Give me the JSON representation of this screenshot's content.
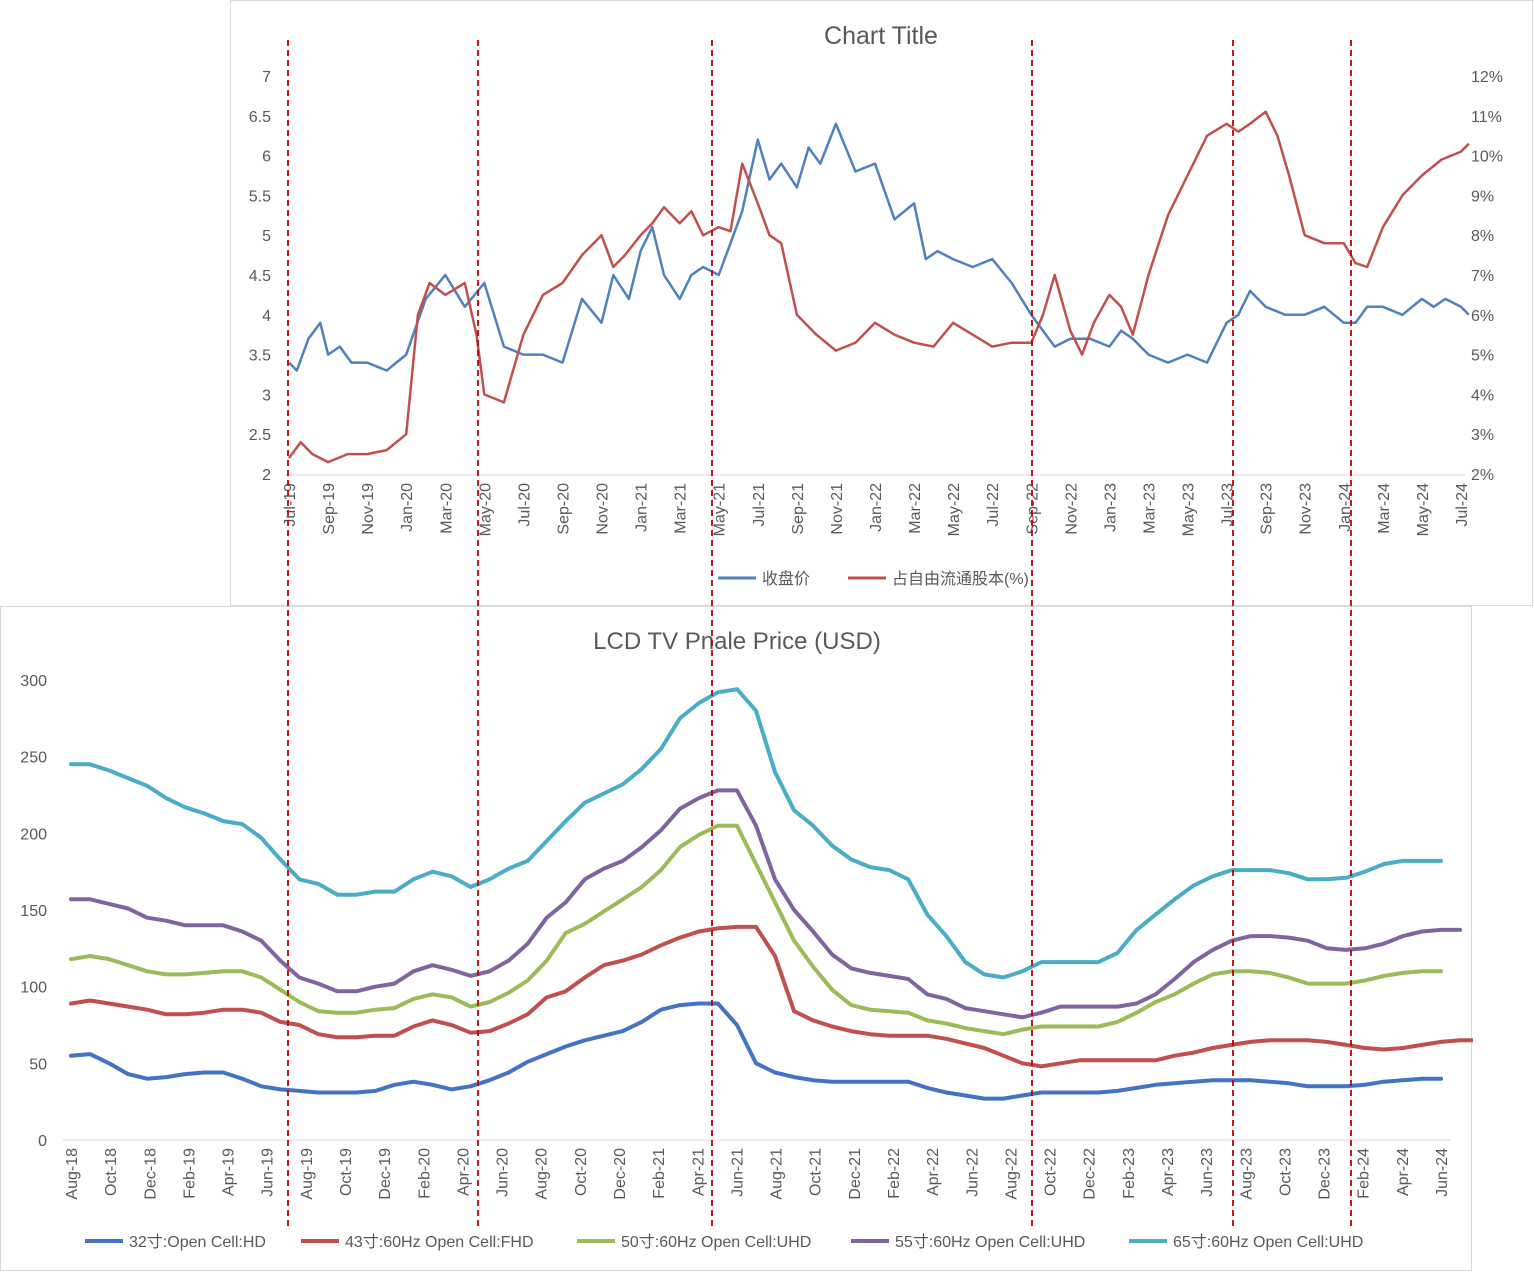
{
  "chart_data": [
    {
      "type": "line",
      "title": "Chart Title",
      "x_labels": [
        "Jul-19",
        "Sep-19",
        "Nov-19",
        "Jan-20",
        "Mar-20",
        "May-20",
        "Jul-20",
        "Sep-20",
        "Nov-20",
        "Jan-21",
        "Mar-21",
        "May-21",
        "Jul-21",
        "Sep-21",
        "Nov-21",
        "Jan-22",
        "Mar-22",
        "May-22",
        "Jul-22",
        "Sep-22",
        "Nov-22",
        "Jan-23",
        "Mar-23",
        "May-23",
        "Jul-23",
        "Sep-23",
        "Nov-23",
        "Jan-24",
        "Mar-24",
        "May-24",
        "Jul-24"
      ],
      "y_left": {
        "ticks": [
          "2",
          "2.5",
          "3",
          "3.5",
          "4",
          "4.5",
          "5",
          "5.5",
          "6",
          "6.5",
          "7"
        ],
        "range": [
          2,
          7
        ]
      },
      "y_right": {
        "ticks": [
          "2%",
          "3%",
          "4%",
          "5%",
          "6%",
          "7%",
          "8%",
          "9%",
          "10%",
          "11%",
          "12%"
        ],
        "range": [
          2,
          12
        ]
      },
      "series": [
        {
          "name": "收盘价",
          "axis": "left",
          "color": "#4f81bd",
          "x": [
            0,
            0.2,
            0.5,
            0.8,
            1,
            1.3,
            1.6,
            2,
            2.5,
            3,
            3.5,
            4,
            4.5,
            5,
            5.5,
            6,
            6.5,
            7,
            7.5,
            8,
            8.3,
            8.7,
            9,
            9.3,
            9.6,
            10,
            10.3,
            10.6,
            11,
            11.3,
            11.6,
            12,
            12.3,
            12.6,
            13,
            13.3,
            13.6,
            14,
            14.5,
            15,
            15.5,
            16,
            16.3,
            16.6,
            17,
            17.5,
            18,
            18.5,
            19,
            19.3,
            19.6,
            20,
            20.5,
            21,
            21.3,
            21.6,
            22,
            22.5,
            23,
            23.5,
            24,
            24.3,
            24.6,
            25,
            25.5,
            26,
            26.5,
            27,
            27.3,
            27.6,
            28,
            28.5,
            29,
            29.3,
            29.6,
            30,
            30.2
          ],
          "y": [
            3.4,
            3.3,
            3.7,
            3.9,
            3.5,
            3.6,
            3.4,
            3.4,
            3.3,
            3.5,
            4.2,
            4.5,
            4.1,
            4.4,
            3.6,
            3.5,
            3.5,
            3.4,
            4.2,
            3.9,
            4.5,
            4.2,
            4.8,
            5.1,
            4.5,
            4.2,
            4.5,
            4.6,
            4.5,
            4.9,
            5.3,
            6.2,
            5.7,
            5.9,
            5.6,
            6.1,
            5.9,
            6.4,
            5.8,
            5.9,
            5.2,
            5.4,
            4.7,
            4.8,
            4.7,
            4.6,
            4.7,
            4.4,
            4.0,
            3.8,
            3.6,
            3.7,
            3.7,
            3.6,
            3.8,
            3.7,
            3.5,
            3.4,
            3.5,
            3.4,
            3.9,
            4.0,
            4.3,
            4.1,
            4.0,
            4.0,
            4.1,
            3.9,
            3.9,
            4.1,
            4.1,
            4.0,
            4.2,
            4.1,
            4.2,
            4.1,
            4.0
          ],
          "notes": "estimated"
        },
        {
          "name": "占自由流通股本(%)",
          "axis": "right",
          "color": "#c0504d",
          "x": [
            0,
            0.3,
            0.6,
            1,
            1.5,
            2,
            2.5,
            3,
            3.3,
            3.6,
            4,
            4.5,
            4.8,
            5,
            5.5,
            6,
            6.5,
            7,
            7.5,
            8,
            8.3,
            8.6,
            9,
            9.3,
            9.6,
            10,
            10.3,
            10.6,
            11,
            11.3,
            11.6,
            12,
            12.3,
            12.6,
            13,
            13.5,
            14,
            14.5,
            15,
            15.5,
            16,
            16.5,
            17,
            17.5,
            18,
            18.5,
            19,
            19.3,
            19.6,
            20,
            20.3,
            20.6,
            21,
            21.3,
            21.6,
            22,
            22.5,
            23,
            23.5,
            24,
            24.3,
            24.6,
            25,
            25.3,
            25.6,
            26,
            26.5,
            27,
            27.3,
            27.6,
            28,
            28.5,
            29,
            29.5,
            30,
            30.2
          ],
          "y": [
            2.4,
            2.8,
            2.5,
            2.3,
            2.5,
            2.5,
            2.6,
            3.0,
            6.0,
            6.8,
            6.5,
            6.8,
            5.5,
            4.0,
            3.8,
            5.5,
            6.5,
            6.8,
            7.5,
            8.0,
            7.2,
            7.5,
            8.0,
            8.3,
            8.7,
            8.3,
            8.6,
            8.0,
            8.2,
            8.1,
            9.8,
            8.8,
            8.0,
            7.8,
            6.0,
            5.5,
            5.1,
            5.3,
            5.8,
            5.5,
            5.3,
            5.2,
            5.8,
            5.5,
            5.2,
            5.3,
            5.3,
            6.0,
            7.0,
            5.6,
            5.0,
            5.8,
            6.5,
            6.2,
            5.5,
            7.0,
            8.5,
            9.5,
            10.5,
            10.8,
            10.6,
            10.8,
            11.1,
            10.5,
            9.5,
            8.0,
            7.8,
            7.8,
            7.3,
            7.2,
            8.2,
            9.0,
            9.5,
            9.9,
            10.1,
            10.3
          ],
          "notes": "estimated"
        }
      ],
      "legend": "bottom"
    },
    {
      "type": "line",
      "title": "LCD TV Pnale Price (USD)",
      "x_labels": [
        "Aug-18",
        "Oct-18",
        "Dec-18",
        "Feb-19",
        "Apr-19",
        "Jun-19",
        "Aug-19",
        "Oct-19",
        "Dec-19",
        "Feb-20",
        "Apr-20",
        "Jun-20",
        "Aug-20",
        "Oct-20",
        "Dec-20",
        "Feb-21",
        "Apr-21",
        "Jun-21",
        "Aug-21",
        "Oct-21",
        "Dec-21",
        "Feb-22",
        "Apr-22",
        "Jun-22",
        "Aug-22",
        "Oct-22",
        "Dec-22",
        "Feb-23",
        "Apr-23",
        "Jun-23",
        "Aug-23",
        "Oct-23",
        "Dec-23",
        "Feb-24",
        "Apr-24",
        "Jun-24"
      ],
      "y": {
        "ticks": [
          "0",
          "50",
          "100",
          "150",
          "200",
          "250",
          "300"
        ],
        "range": [
          0,
          300
        ]
      },
      "series": [
        {
          "name": "32寸:Open Cell:HD",
          "color": "#4472c4",
          "values": [
            55,
            56,
            50,
            43,
            40,
            41,
            43,
            44,
            44,
            40,
            35,
            33,
            32,
            31,
            31,
            31,
            32,
            36,
            38,
            36,
            33,
            35,
            39,
            44,
            51,
            56,
            61,
            65,
            68,
            71,
            77,
            85,
            88,
            89,
            89,
            75,
            50,
            44,
            41,
            39,
            38,
            38,
            38,
            38,
            38,
            34,
            31,
            29,
            27,
            27,
            29,
            31,
            31,
            31,
            31,
            32,
            34,
            36,
            37,
            38,
            39,
            39,
            39,
            38,
            37,
            35,
            35,
            35,
            36,
            38,
            39,
            40,
            40
          ]
        },
        {
          "name": "43寸:60Hz Open Cell:FHD",
          "color": "#c0504d",
          "values": [
            89,
            91,
            89,
            87,
            85,
            82,
            82,
            83,
            85,
            85,
            83,
            77,
            75,
            69,
            67,
            67,
            68,
            68,
            74,
            78,
            75,
            70,
            71,
            76,
            82,
            93,
            97,
            106,
            114,
            117,
            121,
            127,
            132,
            136,
            138,
            139,
            139,
            120,
            84,
            78,
            74,
            71,
            69,
            68,
            68,
            68,
            66,
            63,
            60,
            55,
            50,
            48,
            50,
            52,
            52,
            52,
            52,
            52,
            55,
            57,
            60,
            62,
            64,
            65,
            65,
            65,
            64,
            62,
            60,
            59,
            60,
            62,
            64,
            65,
            65
          ]
        },
        {
          "name": "50寸:60Hz Open Cell:UHD",
          "color": "#9bbb59",
          "values": [
            118,
            120,
            118,
            114,
            110,
            108,
            108,
            109,
            110,
            110,
            106,
            98,
            90,
            84,
            83,
            83,
            85,
            86,
            92,
            95,
            93,
            87,
            90,
            96,
            104,
            117,
            135,
            141,
            149,
            157,
            165,
            176,
            191,
            199,
            205,
            205,
            180,
            155,
            130,
            113,
            98,
            88,
            85,
            84,
            83,
            78,
            76,
            73,
            71,
            69,
            72,
            74,
            74,
            74,
            74,
            77,
            83,
            90,
            95,
            102,
            108,
            110,
            110,
            109,
            106,
            102,
            102,
            102,
            104,
            107,
            109,
            110,
            110
          ]
        },
        {
          "name": "55寸:60Hz Open Cell:UHD",
          "color": "#8064a2",
          "values": [
            157,
            157,
            154,
            151,
            145,
            143,
            140,
            140,
            140,
            136,
            130,
            117,
            106,
            102,
            97,
            97,
            100,
            102,
            110,
            114,
            111,
            107,
            110,
            117,
            128,
            145,
            155,
            170,
            177,
            182,
            191,
            202,
            216,
            223,
            228,
            228,
            205,
            170,
            150,
            136,
            121,
            112,
            109,
            107,
            105,
            95,
            92,
            86,
            84,
            82,
            80,
            83,
            87,
            87,
            87,
            87,
            89,
            95,
            105,
            116,
            124,
            130,
            133,
            133,
            132,
            130,
            125,
            124,
            125,
            128,
            133,
            136,
            137,
            137
          ]
        },
        {
          "name": "65寸:60Hz Open Cell:UHD",
          "color": "#4bacc6",
          "values": [
            245,
            245,
            241,
            236,
            231,
            223,
            217,
            213,
            208,
            206,
            197,
            183,
            170,
            167,
            160,
            160,
            162,
            162,
            170,
            175,
            172,
            165,
            170,
            177,
            182,
            195,
            208,
            220,
            226,
            232,
            242,
            255,
            275,
            285,
            292,
            294,
            280,
            240,
            215,
            205,
            192,
            183,
            178,
            176,
            170,
            147,
            133,
            116,
            108,
            106,
            110,
            116,
            116,
            116,
            116,
            122,
            137,
            147,
            157,
            166,
            172,
            176,
            176,
            176,
            174,
            170,
            170,
            171,
            175,
            180,
            182,
            182,
            182
          ]
        }
      ],
      "legend": "bottom"
    }
  ],
  "legend_top": [
    "收盘价",
    "占自由流通股本(%)"
  ],
  "legend_bottom": [
    "32寸:Open Cell:HD",
    "43寸:60Hz Open Cell:FHD",
    "50寸:60Hz Open Cell:UHD",
    "55寸:60Hz Open Cell:UHD",
    "65寸:60Hz Open Cell:UHD"
  ],
  "markers": {
    "color": "#c00000",
    "count": 6
  }
}
